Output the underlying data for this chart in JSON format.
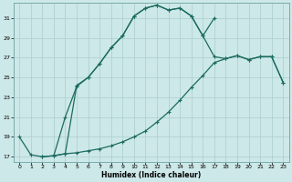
{
  "xlabel": "Humidex (Indice chaleur)",
  "bg_color": "#cde8e8",
  "grid_color": "#aacece",
  "line_color": "#1a6b60",
  "xlim": [
    -0.5,
    23.5
  ],
  "ylim": [
    16.5,
    32.5
  ],
  "xticks": [
    0,
    1,
    2,
    3,
    4,
    5,
    6,
    7,
    8,
    9,
    10,
    11,
    12,
    13,
    14,
    15,
    16,
    17,
    18,
    19,
    20,
    21,
    22,
    23
  ],
  "yticks": [
    17,
    19,
    21,
    23,
    25,
    27,
    29,
    31
  ],
  "c1x": [
    0,
    1,
    2,
    3,
    4,
    5,
    6,
    7,
    8,
    9,
    10,
    11,
    12,
    13,
    14,
    15,
    16,
    17
  ],
  "c1y": [
    19.0,
    17.2,
    17.0,
    17.1,
    21.0,
    24.1,
    25.0,
    26.4,
    28.0,
    29.2,
    31.2,
    32.0,
    32.3,
    31.8,
    32.0,
    31.2,
    29.2,
    31.0
  ],
  "c2x": [
    2,
    3,
    4,
    5,
    6,
    7,
    8,
    9,
    10,
    11,
    12,
    13,
    14,
    15,
    16,
    17,
    18,
    19,
    20,
    21,
    22,
    23
  ],
  "c2y": [
    17.0,
    17.1,
    17.3,
    17.4,
    17.6,
    17.8,
    18.1,
    18.5,
    19.0,
    19.6,
    20.5,
    21.5,
    22.7,
    24.0,
    25.2,
    26.5,
    26.9,
    27.2,
    26.8,
    27.1,
    27.1,
    24.5
  ],
  "c3x": [
    3,
    4,
    5,
    6,
    7,
    8,
    9,
    10,
    11,
    12,
    13,
    14,
    15,
    16,
    17,
    18,
    19,
    20,
    21,
    22,
    23
  ],
  "c3y": [
    17.1,
    17.3,
    24.2,
    25.0,
    26.4,
    28.0,
    29.2,
    31.2,
    32.0,
    32.3,
    31.8,
    32.0,
    31.2,
    29.2,
    27.1,
    26.9,
    27.2,
    26.8,
    27.1,
    27.1,
    24.5
  ]
}
